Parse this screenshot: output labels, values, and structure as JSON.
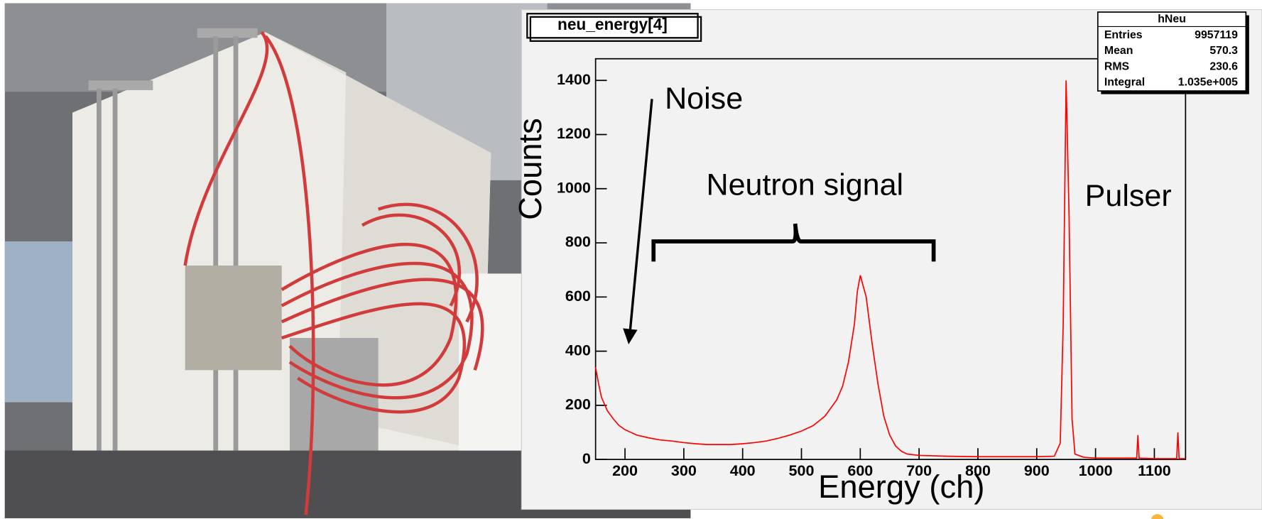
{
  "chart_data": {
    "type": "line",
    "title": "neu_energy[4]",
    "x_label": "Energy (ch)",
    "y_label": "Counts",
    "color": "#ff0000",
    "annotations": [
      "Noise",
      "Neutron signal",
      "Pulser"
    ],
    "stats": {
      "name": "hNeu",
      "rows": [
        [
          "Entries",
          "9957119"
        ],
        [
          "Mean",
          "570.3"
        ],
        [
          "RMS",
          "230.6"
        ],
        [
          "Integral",
          "1.035e+005"
        ]
      ]
    },
    "x": [
      150,
      155,
      160,
      170,
      180,
      190,
      200,
      220,
      240,
      260,
      280,
      300,
      320,
      340,
      360,
      380,
      400,
      420,
      440,
      460,
      480,
      500,
      520,
      540,
      560,
      570,
      580,
      590,
      595,
      600,
      605,
      610,
      620,
      630,
      640,
      650,
      660,
      670,
      680,
      700,
      750,
      800,
      850,
      900,
      930,
      940,
      945,
      950,
      955,
      960,
      965,
      980,
      1000,
      1050,
      1070,
      1072,
      1074,
      1100,
      1138,
      1140,
      1142,
      1153
    ],
    "values": [
      340,
      280,
      230,
      180,
      150,
      125,
      110,
      90,
      80,
      72,
      68,
      62,
      58,
      55,
      55,
      55,
      58,
      62,
      68,
      78,
      90,
      105,
      125,
      160,
      220,
      270,
      360,
      500,
      620,
      680,
      640,
      600,
      430,
      280,
      160,
      90,
      50,
      30,
      20,
      15,
      12,
      10,
      10,
      10,
      12,
      60,
      500,
      1400,
      900,
      150,
      20,
      8,
      5,
      5,
      5,
      90,
      5,
      3,
      3,
      100,
      3,
      3
    ],
    "xlim": [
      150,
      1153
    ],
    "ylim": [
      0,
      1480
    ],
    "xticks": [
      200,
      300,
      400,
      500,
      600,
      700,
      800,
      900,
      1000,
      1100
    ],
    "yticks": [
      0,
      200,
      400,
      600,
      800,
      1000,
      1200,
      1400
    ]
  }
}
